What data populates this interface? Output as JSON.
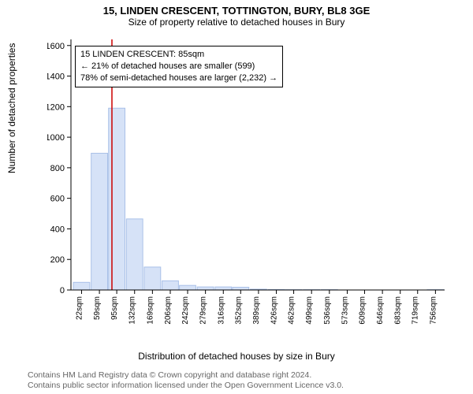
{
  "title_line1": "15, LINDEN CRESCENT, TOTTINGTON, BURY, BL8 3GE",
  "title_line2": "Size of property relative to detached houses in Bury",
  "ylabel": "Number of detached properties",
  "xlabel": "Distribution of detached houses by size in Bury",
  "annotation": {
    "line1": "15 LINDEN CRESCENT: 85sqm",
    "line2": "← 21% of detached houses are smaller (599)",
    "line3": "78% of semi-detached houses are larger (2,232) →"
  },
  "footer": {
    "line1": "Contains HM Land Registry data © Crown copyright and database right 2024.",
    "line2": "Contains public sector information licensed under the Open Government Licence v3.0."
  },
  "chart": {
    "type": "bar",
    "background_color": "#ffffff",
    "bar_fill": "#d6e2f7",
    "bar_stroke": "#a9c0e8",
    "axis_color": "#000000",
    "marker_line_color": "#cc0000",
    "marker_x_value": 85,
    "x_tick_values": [
      22,
      59,
      95,
      132,
      169,
      206,
      242,
      279,
      316,
      352,
      389,
      426,
      462,
      499,
      536,
      573,
      609,
      646,
      683,
      719,
      756
    ],
    "x_tick_suffix": "sqm",
    "y_tick_values": [
      0,
      200,
      400,
      600,
      800,
      1000,
      1200,
      1400,
      1600
    ],
    "ylim": [
      0,
      1640
    ],
    "xlim": [
      0,
      775
    ],
    "bar_width_units": 34,
    "bars": [
      {
        "x": 22,
        "y": 50
      },
      {
        "x": 59,
        "y": 895
      },
      {
        "x": 95,
        "y": 1190
      },
      {
        "x": 132,
        "y": 465
      },
      {
        "x": 169,
        "y": 150
      },
      {
        "x": 206,
        "y": 60
      },
      {
        "x": 242,
        "y": 30
      },
      {
        "x": 279,
        "y": 20
      },
      {
        "x": 316,
        "y": 20
      },
      {
        "x": 352,
        "y": 18
      },
      {
        "x": 389,
        "y": 5
      },
      {
        "x": 426,
        "y": 3
      },
      {
        "x": 462,
        "y": 2
      },
      {
        "x": 499,
        "y": 2
      },
      {
        "x": 536,
        "y": 2
      },
      {
        "x": 573,
        "y": 0
      },
      {
        "x": 609,
        "y": 0
      },
      {
        "x": 646,
        "y": 0
      },
      {
        "x": 683,
        "y": 0
      },
      {
        "x": 719,
        "y": 0
      },
      {
        "x": 756,
        "y": 2
      }
    ]
  }
}
